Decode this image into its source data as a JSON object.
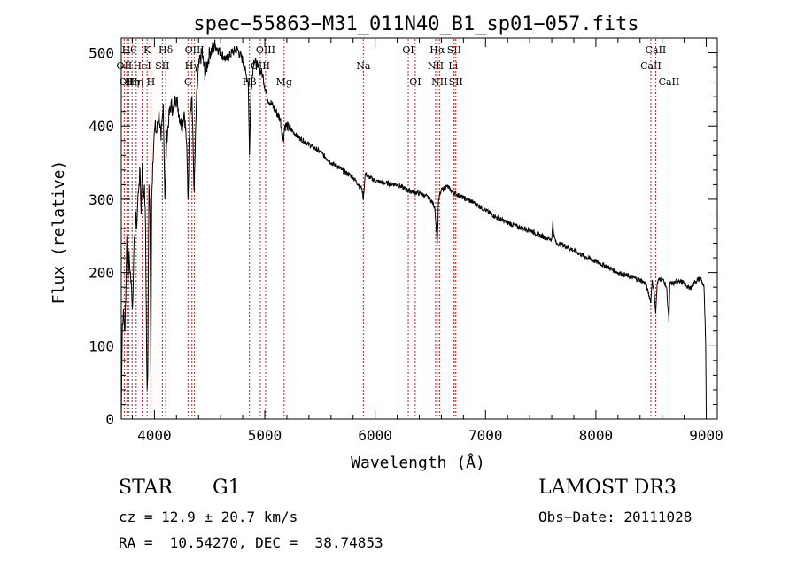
{
  "chart_data": {
    "type": "line",
    "title": "spec−55863−M31_011N40_B1_sp01−057.fits",
    "xlabel": "Wavelength (Å)",
    "ylabel": "Flux (relative)",
    "xlim": [
      3700,
      9100
    ],
    "ylim": [
      0,
      520
    ],
    "xticks": [
      4000,
      5000,
      6000,
      7000,
      8000,
      9000
    ],
    "yticks": [
      0,
      100,
      200,
      300,
      400,
      500
    ],
    "colors": {
      "spectrum": "#000000",
      "lines": "#b22222"
    },
    "series": [
      {
        "name": "flux",
        "x": [
          3700,
          3710,
          3720,
          3730,
          3740,
          3750,
          3760,
          3770,
          3780,
          3790,
          3800,
          3810,
          3820,
          3830,
          3840,
          3850,
          3860,
          3870,
          3880,
          3890,
          3900,
          3910,
          3920,
          3930,
          3934,
          3940,
          3950,
          3960,
          3968,
          3975,
          3985,
          3995,
          4005,
          4020,
          4040,
          4060,
          4080,
          4095,
          4102,
          4110,
          4130,
          4150,
          4170,
          4190,
          4210,
          4230,
          4250,
          4270,
          4290,
          4305,
          4320,
          4340,
          4360,
          4380,
          4400,
          4430,
          4460,
          4500,
          4550,
          4600,
          4650,
          4700,
          4750,
          4800,
          4830,
          4850,
          4861,
          4875,
          4900,
          4940,
          4980,
          5020,
          5060,
          5100,
          5140,
          5168,
          5180,
          5200,
          5240,
          5300,
          5400,
          5500,
          5600,
          5700,
          5800,
          5850,
          5880,
          5893,
          5910,
          5950,
          6000,
          6100,
          6200,
          6300,
          6400,
          6450,
          6500,
          6540,
          6563,
          6575,
          6600,
          6650,
          6700,
          6800,
          6900,
          7000,
          7100,
          7200,
          7300,
          7400,
          7500,
          7600,
          7610,
          7620,
          7640,
          7700,
          7800,
          7900,
          8000,
          8100,
          8200,
          8300,
          8400,
          8450,
          8498,
          8510,
          8530,
          8542,
          8555,
          8570,
          8600,
          8640,
          8662,
          8670,
          8700,
          8750,
          8800,
          8850,
          8900,
          8950,
          8980,
          8995,
          9000
        ],
        "values": [
          0,
          130,
          150,
          120,
          160,
          250,
          180,
          230,
          200,
          190,
          150,
          200,
          250,
          280,
          260,
          300,
          320,
          340,
          280,
          350,
          300,
          320,
          260,
          80,
          40,
          60,
          320,
          280,
          60,
          300,
          350,
          380,
          400,
          390,
          420,
          380,
          430,
          300,
          330,
          380,
          410,
          430,
          420,
          440,
          430,
          410,
          400,
          420,
          380,
          300,
          420,
          440,
          310,
          430,
          480,
          500,
          470,
          500,
          510,
          500,
          490,
          500,
          505,
          490,
          470,
          460,
          360,
          450,
          490,
          480,
          470,
          440,
          430,
          420,
          410,
          380,
          400,
          400,
          395,
          385,
          375,
          365,
          350,
          340,
          330,
          320,
          315,
          300,
          335,
          330,
          325,
          322,
          320,
          312,
          308,
          305,
          300,
          290,
          240,
          300,
          312,
          318,
          310,
          302,
          295,
          285,
          275,
          268,
          262,
          258,
          250,
          245,
          270,
          250,
          240,
          238,
          230,
          222,
          215,
          208,
          200,
          195,
          190,
          185,
          160,
          190,
          170,
          145,
          185,
          190,
          192,
          180,
          132,
          185,
          185,
          190,
          185,
          178,
          188,
          192,
          180,
          100,
          10
        ]
      }
    ],
    "line_markers": [
      {
        "wavelength": 3727,
        "label": "OII",
        "row": 1
      },
      {
        "wavelength": 3750,
        "label": "OII",
        "row": 2
      },
      {
        "wavelength": 3770,
        "label": "Hθ",
        "row": 0
      },
      {
        "wavelength": 3798,
        "label": "Hη",
        "row": 2
      },
      {
        "wavelength": 3835,
        "label": "Hη",
        "row": 2
      },
      {
        "wavelength": 3889,
        "label": "HeI",
        "row": 1
      },
      {
        "wavelength": 3934,
        "label": "K",
        "row": 0
      },
      {
        "wavelength": 3968,
        "label": "H",
        "row": 2
      },
      {
        "wavelength": 4072,
        "label": "SII",
        "row": 1
      },
      {
        "wavelength": 4102,
        "label": "Hδ",
        "row": 0
      },
      {
        "wavelength": 4304,
        "label": "G",
        "row": 2
      },
      {
        "wavelength": 4340,
        "label": "Hγ",
        "row": 1
      },
      {
        "wavelength": 4363,
        "label": "OIII",
        "row": 0
      },
      {
        "wavelength": 4861,
        "label": "Hβ",
        "row": 2
      },
      {
        "wavelength": 4959,
        "label": "OIII",
        "row": 1
      },
      {
        "wavelength": 5007,
        "label": "OIII",
        "row": 0
      },
      {
        "wavelength": 5175,
        "label": "Mg",
        "row": 2
      },
      {
        "wavelength": 5893,
        "label": "Na",
        "row": 1
      },
      {
        "wavelength": 6300,
        "label": "OI",
        "row": 0
      },
      {
        "wavelength": 6363,
        "label": "OI",
        "row": 2
      },
      {
        "wavelength": 6548,
        "label": "NII",
        "row": 1
      },
      {
        "wavelength": 6563,
        "label": "Hα",
        "row": 0
      },
      {
        "wavelength": 6583,
        "label": "NII",
        "row": 2
      },
      {
        "wavelength": 6707,
        "label": "Li",
        "row": 1
      },
      {
        "wavelength": 6716,
        "label": "SII",
        "row": 0
      },
      {
        "wavelength": 6731,
        "label": "SII",
        "row": 2
      },
      {
        "wavelength": 8498,
        "label": "CaII",
        "row": 1
      },
      {
        "wavelength": 8542,
        "label": "CaII",
        "row": 0
      },
      {
        "wavelength": 8662,
        "label": "CaII",
        "row": 2
      }
    ]
  },
  "info": {
    "class_label": "STAR",
    "subclass_label": "G1",
    "survey": "LAMOST DR3",
    "cz": "cz = 12.9 ± 20.7 km/s",
    "obs_date": "Obs−Date: 20111028",
    "coords": "RA =  10.54270, DEC =  38.74853"
  }
}
